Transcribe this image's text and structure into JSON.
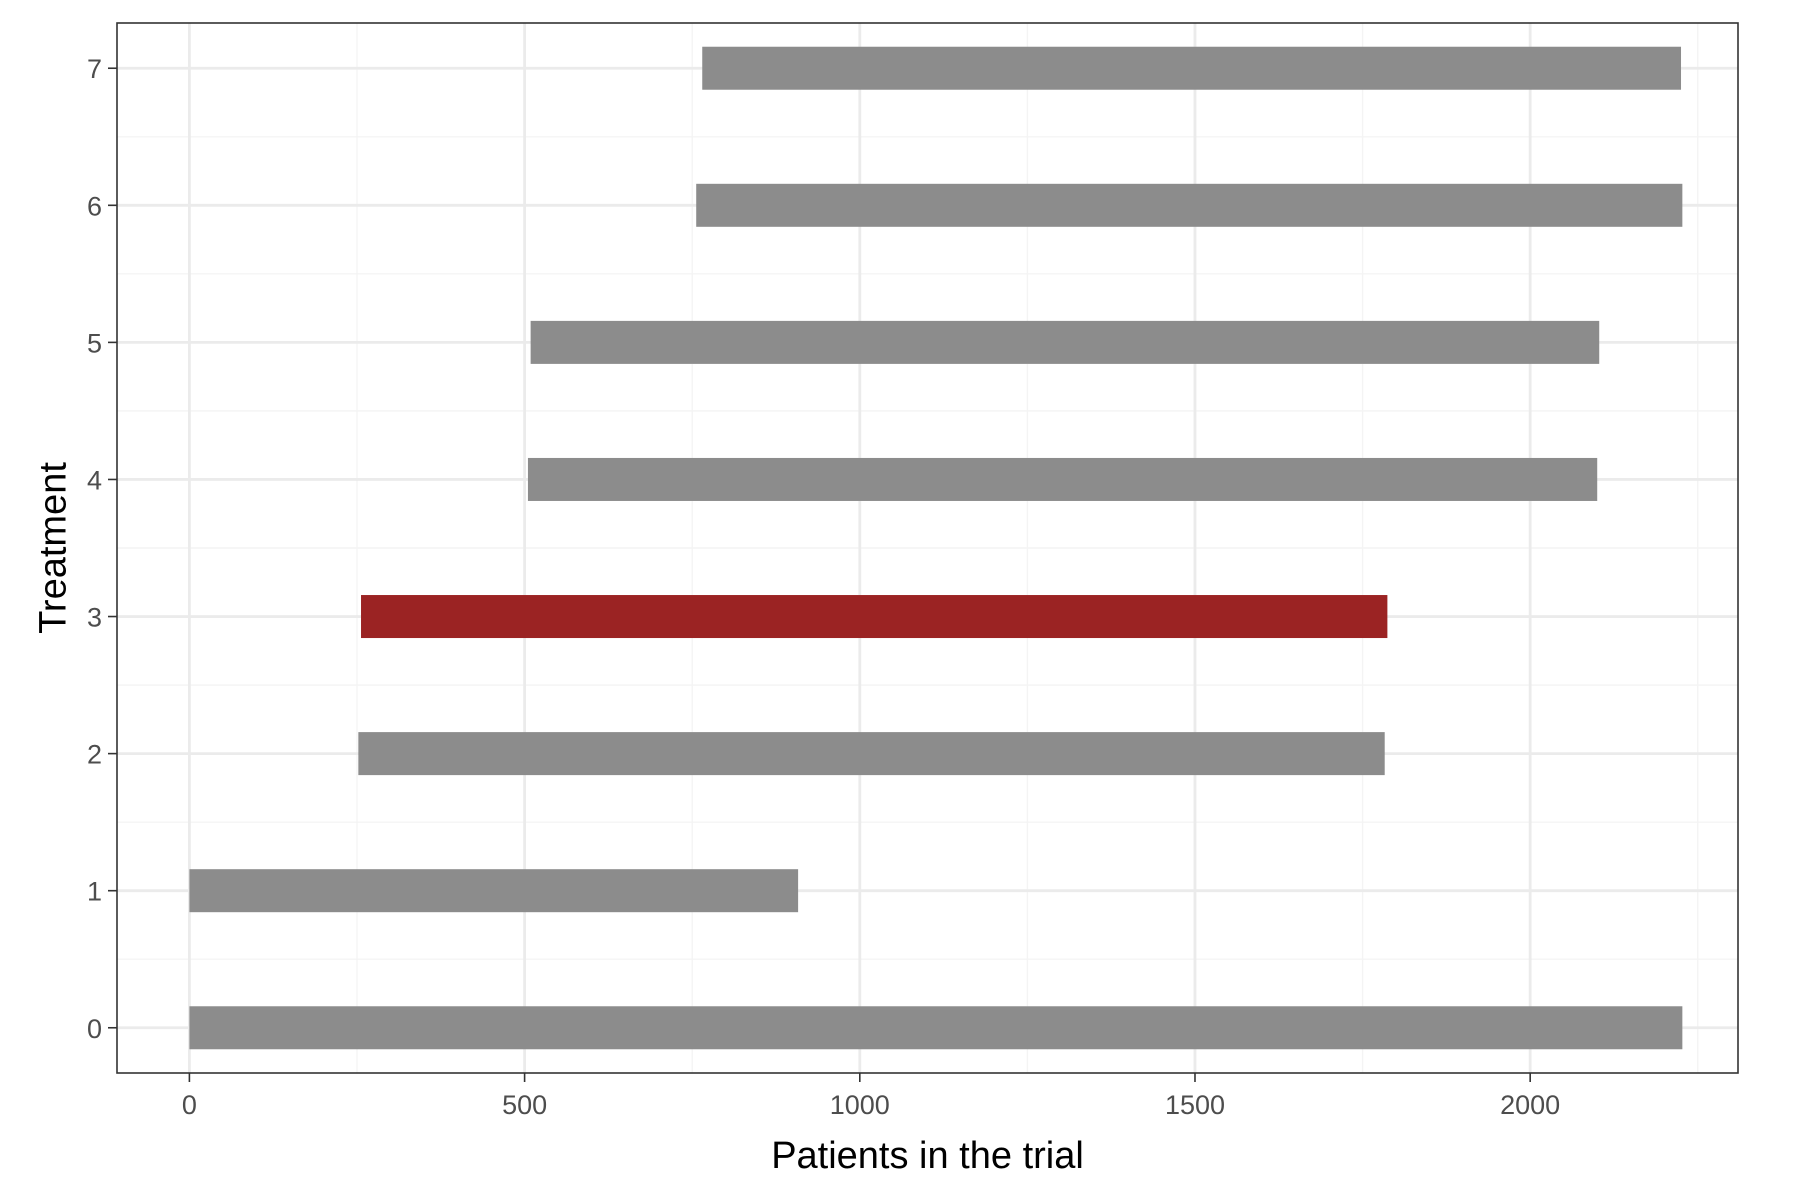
{
  "chart_data": {
    "type": "bar",
    "orientation": "horizontal-range",
    "title": "",
    "xlabel": "Patients in the trial",
    "ylabel": "Treatment",
    "xlim": [
      -108,
      2310
    ],
    "ylim": [
      -0.33,
      7.33
    ],
    "x_ticks": [
      0,
      500,
      1000,
      1500,
      2000
    ],
    "x_minor_ticks": [
      250,
      750,
      1250,
      1750,
      2250
    ],
    "y_ticks": [
      0,
      1,
      2,
      3,
      4,
      5,
      6,
      7
    ],
    "grid": true,
    "legend": "none",
    "bars": [
      {
        "treatment": "0",
        "start": 0,
        "end": 2227,
        "highlight": false
      },
      {
        "treatment": "1",
        "start": 0,
        "end": 908,
        "highlight": false
      },
      {
        "treatment": "2",
        "start": 252,
        "end": 1783,
        "highlight": false
      },
      {
        "treatment": "3",
        "start": 256,
        "end": 1787,
        "highlight": true
      },
      {
        "treatment": "4",
        "start": 505,
        "end": 2100,
        "highlight": false
      },
      {
        "treatment": "5",
        "start": 509,
        "end": 2103,
        "highlight": false
      },
      {
        "treatment": "6",
        "start": 756,
        "end": 2227,
        "highlight": false
      },
      {
        "treatment": "7",
        "start": 765,
        "end": 2225,
        "highlight": false
      }
    ],
    "colors": {
      "bar": "#8c8c8c",
      "highlight": "#9b2323",
      "grid_major": "#ebebeb",
      "grid_minor": "#f4f4f4",
      "panel_border": "#333333",
      "tick": "#333333"
    }
  }
}
